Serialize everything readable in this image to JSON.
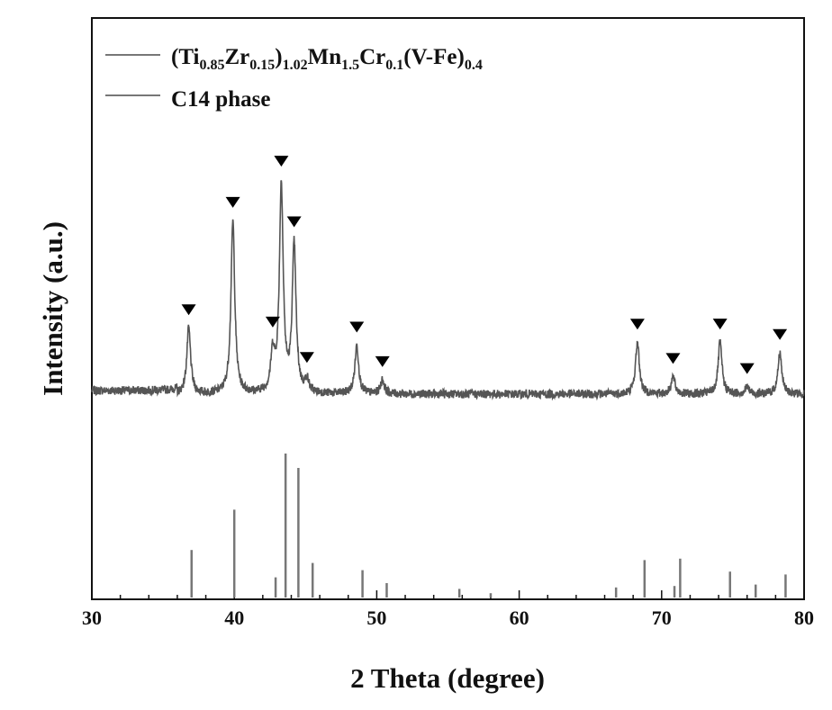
{
  "chart_data": {
    "type": "line",
    "xlabel": "2 Theta (degree)",
    "ylabel": "Intensity (a.u.)",
    "xlim": [
      30,
      80
    ],
    "xticks": [
      "30",
      "40",
      "50",
      "60",
      "70",
      "80"
    ],
    "xtick_values": [
      30,
      40,
      50,
      60,
      70,
      80
    ],
    "minor_tick_step": 2,
    "legend_position": "top-left",
    "legend": {
      "sample": {
        "parts": [
          {
            "t": "(Ti",
            "sub": false
          },
          {
            "t": "0.85",
            "sub": true
          },
          {
            "t": "Zr",
            "sub": false
          },
          {
            "t": "0.15",
            "sub": true
          },
          {
            "t": ")",
            "sub": false
          },
          {
            "t": "1.02",
            "sub": true
          },
          {
            "t": "Mn",
            "sub": false
          },
          {
            "t": "1.5",
            "sub": true
          },
          {
            "t": "Cr",
            "sub": false
          },
          {
            "t": "0.1",
            "sub": true
          },
          {
            "t": "(V-Fe)",
            "sub": false
          },
          {
            "t": "0.4",
            "sub": true
          }
        ]
      },
      "reference": "C14 phase"
    },
    "series": [
      {
        "peaks": [
          {
            "x": 36.8,
            "y": 0.38,
            "marked": true
          },
          {
            "x": 39.9,
            "y": 1.0,
            "marked": true
          },
          {
            "x": 42.7,
            "y": 0.22,
            "marked": true
          },
          {
            "x": 43.3,
            "y": 1.2,
            "marked": true
          },
          {
            "x": 44.2,
            "y": 0.85,
            "marked": true
          },
          {
            "x": 45.1,
            "y": 0.07,
            "marked": true
          },
          {
            "x": 48.6,
            "y": 0.28,
            "marked": true
          },
          {
            "x": 50.4,
            "y": 0.08,
            "marked": true
          },
          {
            "x": 68.3,
            "y": 0.3,
            "marked": true
          },
          {
            "x": 70.8,
            "y": 0.1,
            "marked": true
          },
          {
            "x": 74.1,
            "y": 0.3,
            "marked": true
          },
          {
            "x": 76.0,
            "y": 0.04,
            "marked": true
          },
          {
            "x": 78.3,
            "y": 0.24,
            "marked": true
          }
        ]
      },
      {
        "sticks": [
          {
            "x": 37.0,
            "y": 0.33
          },
          {
            "x": 40.0,
            "y": 0.61
          },
          {
            "x": 42.9,
            "y": 0.14
          },
          {
            "x": 43.6,
            "y": 1.0
          },
          {
            "x": 44.5,
            "y": 0.9
          },
          {
            "x": 45.5,
            "y": 0.24
          },
          {
            "x": 49.0,
            "y": 0.19
          },
          {
            "x": 50.7,
            "y": 0.1
          },
          {
            "x": 55.8,
            "y": 0.06
          },
          {
            "x": 58.0,
            "y": 0.03
          },
          {
            "x": 66.8,
            "y": 0.07
          },
          {
            "x": 68.8,
            "y": 0.26
          },
          {
            "x": 70.9,
            "y": 0.08
          },
          {
            "x": 71.3,
            "y": 0.27
          },
          {
            "x": 74.8,
            "y": 0.18
          },
          {
            "x": 76.6,
            "y": 0.09
          },
          {
            "x": 78.7,
            "y": 0.16
          }
        ]
      }
    ]
  }
}
